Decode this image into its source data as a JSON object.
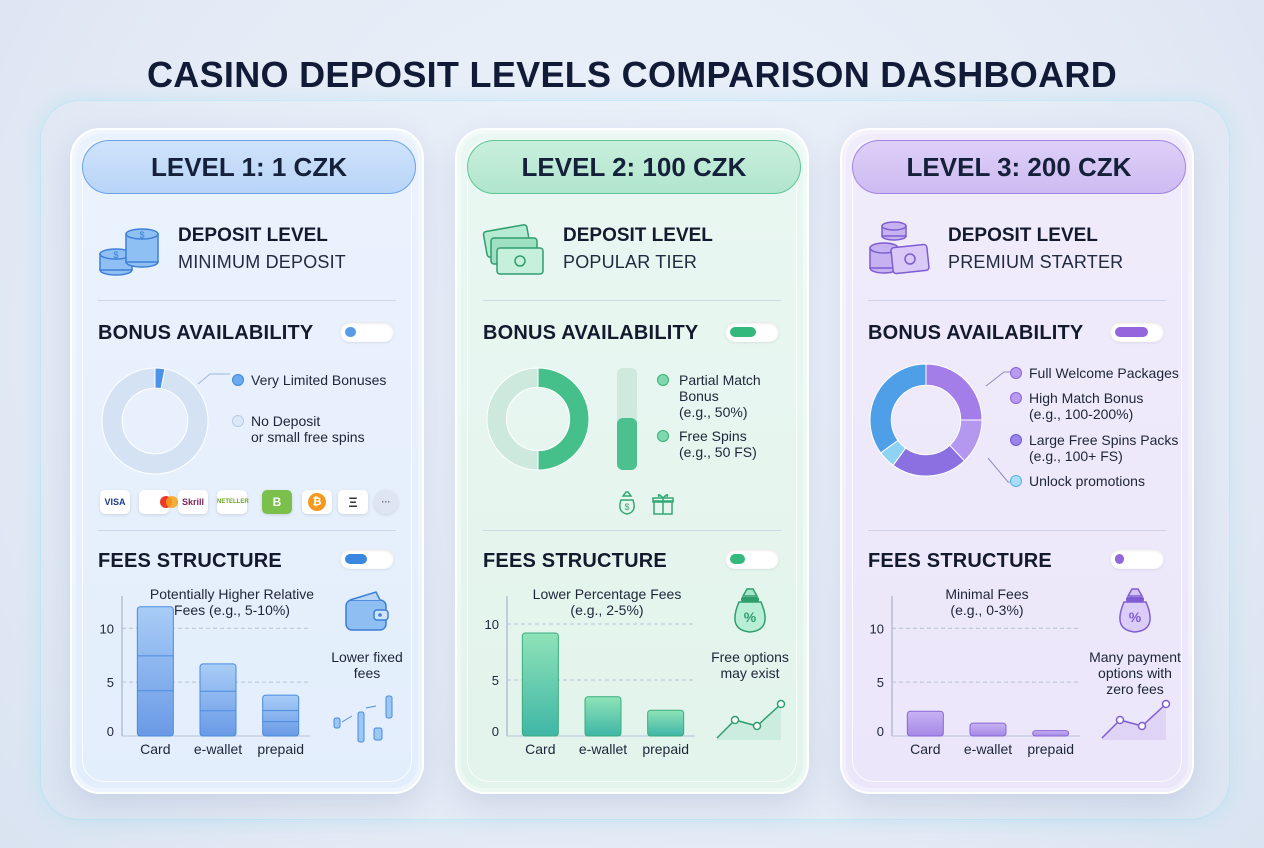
{
  "title": "CASINO DEPOSIT LEVELS COMPARISON DASHBOARD",
  "levels": [
    {
      "header": "LEVEL 1: 1 CZK",
      "deposit_label": "DEPOSIT LEVEL",
      "deposit_sub": "MINIMUM DEPOSIT",
      "bonus_title": "BONUS AVAILABILITY",
      "bonus_toggle_level": 0.25,
      "bonus_legend": [
        "Very Limited Bonuses",
        "No Deposit\nor small free spins"
      ],
      "payment_methods": [
        "VISA",
        "mastercard",
        "Skrill",
        "NETELLER",
        "B",
        "₿",
        "Ξ",
        "···"
      ],
      "fees_title": "FEES STRUCTURE",
      "fees_toggle_level": 0.5,
      "fees_caption": "Potentially Higher Relative\nFees (e.g., 5-10%)",
      "side_note": "Lower fixed\nfees",
      "icon_names": [
        "coins-icon",
        "wallet-icon",
        "transfer-icon"
      ],
      "accent": "#5a9be8"
    },
    {
      "header": "LEVEL 2: 100 CZK",
      "deposit_label": "DEPOSIT LEVEL",
      "deposit_sub": "POPULAR TIER",
      "bonus_title": "BONUS AVAILABILITY",
      "bonus_toggle_level": 0.6,
      "bonus_legend": [
        "Partial Match\nBonus\n(e.g., 50%)",
        "Free Spins\n(e.g., 50 FS)"
      ],
      "fees_title": "FEES STRUCTURE",
      "fees_toggle_level": 0.35,
      "fees_caption": "Lower Percentage Fees\n(e.g., 2-5%)",
      "side_note": "Free options\nmay exist",
      "icon_names": [
        "cash-icon",
        "money-bag-icon",
        "gift-icon",
        "percent-bag-icon",
        "trend-line-icon"
      ],
      "accent": "#3fbf86"
    },
    {
      "header": "LEVEL 3: 200 CZK",
      "deposit_label": "DEPOSIT LEVEL",
      "deposit_sub": "PREMIUM STARTER",
      "bonus_title": "BONUS AVAILABILITY",
      "bonus_toggle_level": 0.75,
      "bonus_legend": [
        "Full Welcome Packages",
        "High Match Bonus\n(e.g., 100-200%)",
        "Large Free Spins Packs\n(e.g., 100+ FS)",
        "Unlock promotions"
      ],
      "fees_title": "FEES STRUCTURE",
      "fees_toggle_level": 0.2,
      "fees_caption": "Minimal Fees\n(e.g., 0-3%)",
      "side_note": "Many payment\noptions with\nzero fees",
      "icon_names": [
        "coins-cash-icon",
        "percent-bag-icon",
        "trend-line-icon"
      ],
      "accent": "#9b74e0"
    }
  ],
  "chart_data": [
    {
      "type": "donut",
      "series": [
        {
          "name": "Very Limited Bonuses",
          "values": [
            3
          ]
        },
        {
          "name": "No Deposit or small free spins",
          "values": [
            97
          ]
        }
      ]
    },
    {
      "type": "donut",
      "series": [
        {
          "name": "Partial Match Bonus (e.g., 50%)",
          "values": [
            50
          ]
        },
        {
          "name": "Free Spins (e.g., 50 FS)",
          "values": [
            50
          ]
        }
      ]
    },
    {
      "type": "donut",
      "series": [
        {
          "name": "Full Welcome Packages",
          "values": [
            25
          ]
        },
        {
          "name": "High Match Bonus (e.g., 100-200%)",
          "values": [
            13
          ]
        },
        {
          "name": "Large Free Spins Packs (e.g., 100+ FS)",
          "values": [
            22
          ]
        },
        {
          "name": "Unlock promotions",
          "values": [
            5
          ]
        },
        {
          "name": "",
          "values": [
            35
          ]
        }
      ]
    },
    {
      "type": "bar",
      "categories": [
        "Card",
        "e-wallet",
        "prepaid"
      ],
      "values": [
        12,
        6.7,
        3.8
      ],
      "yticks": [
        "10",
        "5",
        "0"
      ],
      "ylim": [
        0,
        13
      ],
      "grid": true
    },
    {
      "type": "bar",
      "categories": [
        "Card",
        "e-wallet",
        "prepaid"
      ],
      "values": [
        9.2,
        3.5,
        2.3
      ],
      "yticks": [
        "10",
        "5",
        "0"
      ],
      "ylim": [
        0,
        12.5
      ],
      "grid": true
    },
    {
      "type": "bar",
      "categories": [
        "Card",
        "e-wallet",
        "prepaid"
      ],
      "values": [
        2.3,
        1.2,
        0.5
      ],
      "yticks": [
        "10",
        "5",
        "0"
      ],
      "ylim": [
        0,
        13
      ],
      "grid": true
    }
  ]
}
